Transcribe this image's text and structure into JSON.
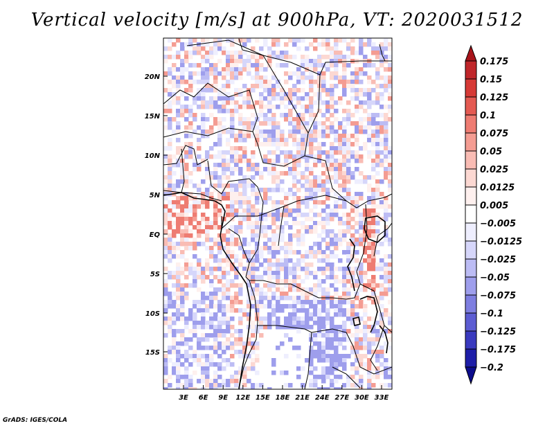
{
  "title": "Vertical velocity [m/s] at 900hPa, VT: 2020031512",
  "credit": "GrADS: IGES/COLA",
  "map": {
    "lat_labels": [
      "20N",
      "15N",
      "10N",
      "5N",
      "EQ",
      "5S",
      "10S",
      "15S"
    ],
    "lon_labels": [
      "3E",
      "6E",
      "9E",
      "12E",
      "15E",
      "18E",
      "21E",
      "24E",
      "27E",
      "30E",
      "33E"
    ]
  },
  "colorbar": {
    "levels": [
      "0.175",
      "0.15",
      "0.125",
      "0.1",
      "0.075",
      "0.05",
      "0.025",
      "0.0125",
      "0.005",
      "−0.005",
      "−0.0125",
      "−0.025",
      "−0.05",
      "−0.075",
      "−0.1",
      "−0.125",
      "−0.175",
      "−0.2"
    ],
    "colors": [
      "#a8141a",
      "#c0262a",
      "#d63a36",
      "#e45a52",
      "#ee7c72",
      "#f49c92",
      "#f9bcb4",
      "#fcd8d2",
      "#fef0ee",
      "#ffffff",
      "#eeeefe",
      "#d6d6fa",
      "#bcbcf4",
      "#9e9eec",
      "#7e7ee0",
      "#5c5cd2",
      "#3a3abf",
      "#1e1ea8",
      "#0c0c8c"
    ]
  }
}
